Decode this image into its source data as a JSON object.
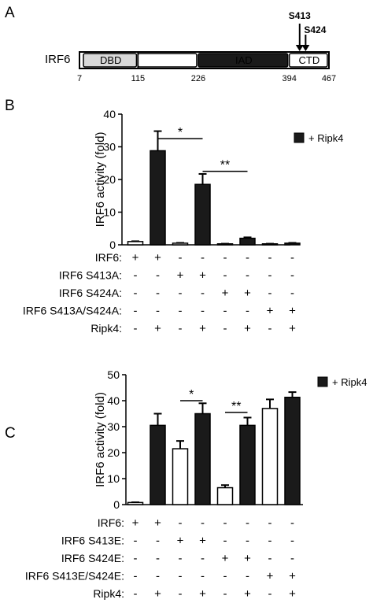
{
  "panel_a": {
    "label": "A",
    "protein": "IRF6",
    "domains": [
      {
        "name": "DBD",
        "start": 7,
        "end": 115,
        "fill": "#d9d9d9",
        "text_color": "#000000"
      },
      {
        "name": "",
        "start": 115,
        "end": 226,
        "fill": "#ffffff",
        "text_color": "#000000"
      },
      {
        "name": "IAD",
        "start": 226,
        "end": 394,
        "fill": "#1a1a1a",
        "text_color": "#ffffff"
      },
      {
        "name": "CTD",
        "start": 394,
        "end": 467,
        "fill": "#ffffff",
        "text_color": "#000000"
      }
    ],
    "positions": [
      "7",
      "115",
      "226",
      "394",
      "467"
    ],
    "sites": [
      {
        "label": "S413",
        "residue": 413
      },
      {
        "label": "S424",
        "residue": 424
      }
    ]
  },
  "chart_data": [
    {
      "panel": "B",
      "type": "bar",
      "ylabel": "IRF6 activity (fold)",
      "ylim": [
        0,
        40
      ],
      "yticks": [
        0,
        10,
        20,
        30,
        40
      ],
      "legend": {
        "marker_color": "#1a1a1a",
        "label": "+ Ripk4",
        "placement": "top-right"
      },
      "values": [
        1.0,
        28.8,
        0.5,
        18.5,
        0.3,
        2.0,
        0.3,
        0.5
      ],
      "errors": [
        0.1,
        6.0,
        0.1,
        3.2,
        0.05,
        0.3,
        0.05,
        0.1
      ],
      "bar_colors": [
        "#ffffff",
        "#1a1a1a",
        "#ffffff",
        "#1a1a1a",
        "#ffffff",
        "#1a1a1a",
        "#ffffff",
        "#1a1a1a"
      ],
      "significance": [
        {
          "from": 1,
          "to": 3,
          "y": 32.5,
          "label": "*"
        },
        {
          "from": 3,
          "to": 5,
          "y": 22.5,
          "label": "**"
        }
      ],
      "conditions": [
        {
          "name": "IRF6:",
          "signs": [
            "+",
            "+",
            "-",
            "-",
            "-",
            "-",
            "-",
            "-"
          ]
        },
        {
          "name": "IRF6 S413A:",
          "signs": [
            "-",
            "-",
            "+",
            "+",
            "-",
            "-",
            "-",
            "-"
          ]
        },
        {
          "name": "IRF6 S424A:",
          "signs": [
            "-",
            "-",
            "-",
            "-",
            "+",
            "+",
            "-",
            "-"
          ]
        },
        {
          "name": "IRF6 S413A/S424A:",
          "signs": [
            "-",
            "-",
            "-",
            "-",
            "-",
            "-",
            "+",
            "+"
          ]
        },
        {
          "name": "Ripk4:",
          "signs": [
            "-",
            "+",
            "-",
            "+",
            "-",
            "+",
            "-",
            "+"
          ]
        }
      ]
    },
    {
      "panel": "C",
      "type": "bar",
      "ylabel": "IRF6 activity (fold)",
      "ylim": [
        0,
        50
      ],
      "yticks": [
        0,
        10,
        20,
        30,
        40,
        50
      ],
      "legend": {
        "marker_color": "#1a1a1a",
        "label": "+ Ripk4",
        "placement": "top-right"
      },
      "values": [
        0.8,
        30.5,
        21.5,
        35.0,
        6.5,
        30.5,
        37.0,
        41.3
      ],
      "errors": [
        0.1,
        4.5,
        3.0,
        4.0,
        1.0,
        3.0,
        3.5,
        2.0
      ],
      "bar_colors": [
        "#ffffff",
        "#1a1a1a",
        "#ffffff",
        "#1a1a1a",
        "#ffffff",
        "#1a1a1a",
        "#ffffff",
        "#1a1a1a"
      ],
      "significance": [
        {
          "from": 2,
          "to": 3,
          "y": 40.0,
          "label": "*"
        },
        {
          "from": 4,
          "to": 5,
          "y": 35.5,
          "label": "**"
        }
      ],
      "conditions": [
        {
          "name": "IRF6:",
          "signs": [
            "+",
            "+",
            "-",
            "-",
            "-",
            "-",
            "-",
            "-"
          ]
        },
        {
          "name": "IRF6 S413E:",
          "signs": [
            "-",
            "-",
            "+",
            "+",
            "-",
            "-",
            "-",
            "-"
          ]
        },
        {
          "name": "IRF6 S424E:",
          "signs": [
            "-",
            "-",
            "-",
            "-",
            "+",
            "+",
            "-",
            "-"
          ]
        },
        {
          "name": "IRF6 S413E/S424E:",
          "signs": [
            "-",
            "-",
            "-",
            "-",
            "-",
            "-",
            "+",
            "+"
          ]
        },
        {
          "name": "Ripk4:",
          "signs": [
            "-",
            "+",
            "-",
            "+",
            "-",
            "+",
            "-",
            "+"
          ]
        }
      ]
    }
  ]
}
